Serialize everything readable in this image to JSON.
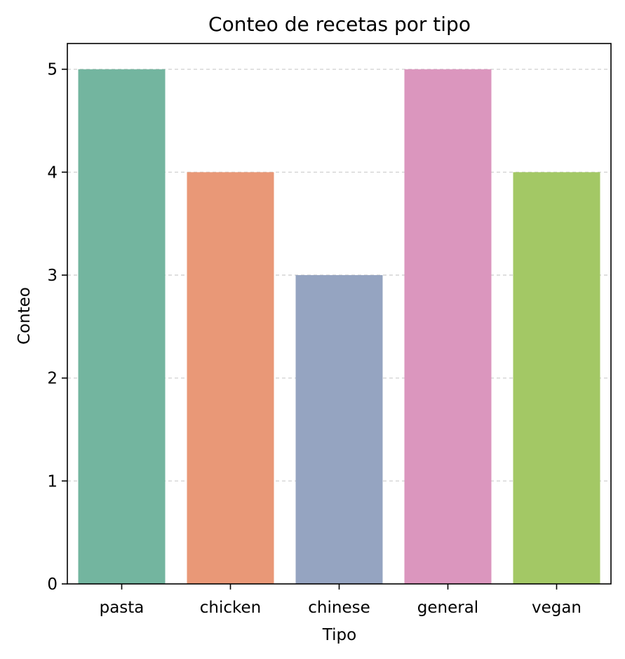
{
  "chart_data": {
    "type": "bar",
    "title": "Conteo de recetas por tipo",
    "xlabel": "Tipo",
    "ylabel": "Conteo",
    "categories": [
      "pasta",
      "chicken",
      "chinese",
      "general",
      "vegan"
    ],
    "values": [
      5,
      4,
      3,
      5,
      4
    ],
    "colors": [
      "#73b59f",
      "#e99877",
      "#95a4c1",
      "#db96be",
      "#a3c865"
    ],
    "ylim": [
      0,
      5.25
    ],
    "yticks": [
      0,
      1,
      2,
      3,
      4,
      5
    ],
    "grid": "y-dashed",
    "legend": "none"
  }
}
